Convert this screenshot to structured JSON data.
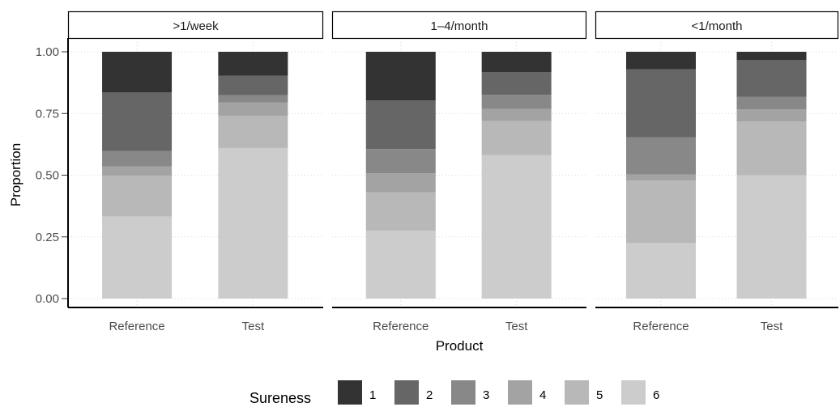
{
  "chart_data": {
    "type": "bar",
    "stacked": true,
    "xlabel": "Product",
    "ylabel": "Proportion",
    "ylim": [
      0,
      1
    ],
    "yticks": [
      0.0,
      0.25,
      0.5,
      0.75,
      1.0
    ],
    "ytick_labels": [
      "0.00",
      "0.25",
      "0.50",
      "0.75",
      "1.00"
    ],
    "categories": [
      "Reference",
      "Test"
    ],
    "facets": [
      {
        "label": ">1/week",
        "bars": [
          {
            "category": "Reference",
            "values": {
              "1": 0.165,
              "2": 0.237,
              "3": 0.063,
              "4": 0.037,
              "5": 0.165,
              "6": 0.333
            }
          },
          {
            "category": "Test",
            "values": {
              "1": 0.097,
              "2": 0.079,
              "3": 0.03,
              "4": 0.053,
              "5": 0.131,
              "6": 0.61
            }
          }
        ]
      },
      {
        "label": "1–4/month",
        "bars": [
          {
            "category": "Reference",
            "values": {
              "1": 0.197,
              "2": 0.197,
              "3": 0.098,
              "4": 0.077,
              "5": 0.156,
              "6": 0.275
            }
          },
          {
            "category": "Test",
            "values": {
              "1": 0.083,
              "2": 0.091,
              "3": 0.057,
              "4": 0.05,
              "5": 0.137,
              "6": 0.582
            }
          }
        ]
      },
      {
        "label": "<1/month",
        "bars": [
          {
            "category": "Reference",
            "values": {
              "1": 0.071,
              "2": 0.276,
              "3": 0.15,
              "4": 0.025,
              "5": 0.253,
              "6": 0.225
            }
          },
          {
            "category": "Test",
            "values": {
              "1": 0.034,
              "2": 0.148,
              "3": 0.051,
              "4": 0.05,
              "5": 0.217,
              "6": 0.5
            }
          }
        ]
      }
    ],
    "legend": {
      "title": "Sureness",
      "position": "bottom",
      "levels": [
        "1",
        "2",
        "3",
        "4",
        "5",
        "6"
      ],
      "colors": [
        "#333333",
        "#666666",
        "#888888",
        "#a3a3a3",
        "#b8b8b8",
        "#cccccc"
      ]
    },
    "grid": "dotted"
  }
}
